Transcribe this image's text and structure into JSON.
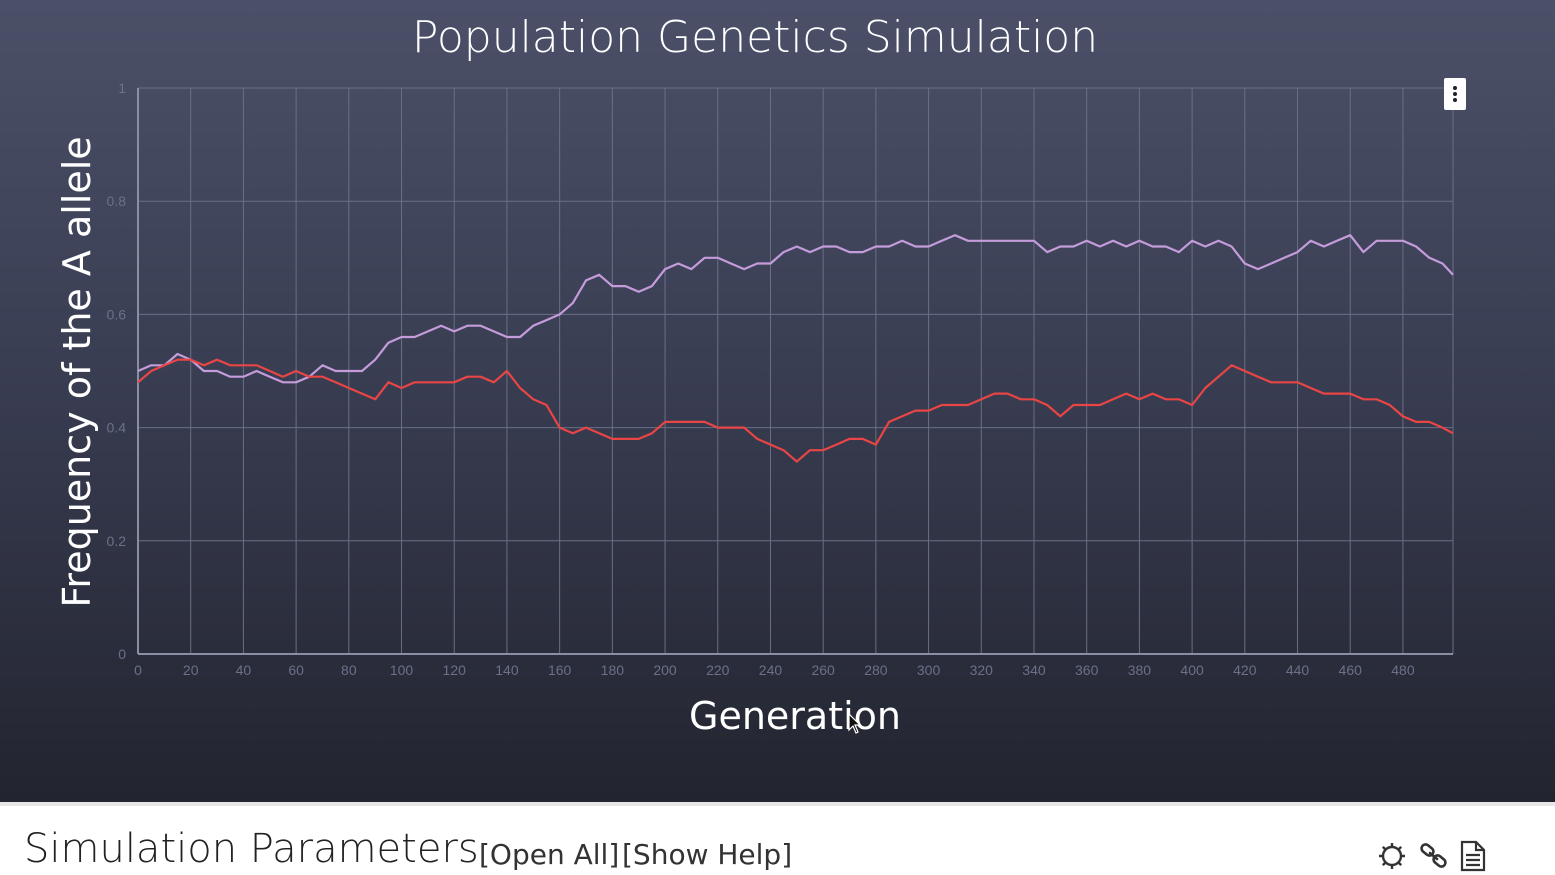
{
  "chart_data": {
    "type": "line",
    "title": "Population Genetics Simulation",
    "xlabel": "Generation",
    "ylabel": "Frequency of the A allele",
    "xlim": [
      0,
      499
    ],
    "ylim": [
      0,
      1
    ],
    "x_ticks": [
      0,
      20,
      40,
      60,
      80,
      100,
      120,
      140,
      160,
      180,
      200,
      220,
      240,
      260,
      280,
      300,
      320,
      340,
      360,
      380,
      400,
      420,
      440,
      460,
      480
    ],
    "y_ticks": [
      0,
      0.2,
      0.4,
      0.6,
      0.8,
      1
    ],
    "grid": true,
    "series": [
      {
        "color": "#c59cdb",
        "x": [
          0,
          5,
          10,
          15,
          20,
          25,
          30,
          35,
          40,
          45,
          50,
          55,
          60,
          65,
          70,
          75,
          80,
          85,
          90,
          95,
          100,
          105,
          110,
          115,
          120,
          125,
          130,
          135,
          140,
          145,
          150,
          155,
          160,
          165,
          170,
          175,
          180,
          185,
          190,
          195,
          200,
          205,
          210,
          215,
          220,
          225,
          230,
          235,
          240,
          245,
          250,
          255,
          260,
          265,
          270,
          275,
          280,
          285,
          290,
          295,
          300,
          305,
          310,
          315,
          320,
          325,
          330,
          335,
          340,
          345,
          350,
          355,
          360,
          365,
          370,
          375,
          380,
          385,
          390,
          395,
          400,
          405,
          410,
          415,
          420,
          425,
          430,
          435,
          440,
          445,
          450,
          455,
          460,
          465,
          470,
          475,
          480,
          485,
          490,
          495,
          499
        ],
        "y": [
          0.5,
          0.51,
          0.51,
          0.53,
          0.52,
          0.5,
          0.5,
          0.49,
          0.49,
          0.5,
          0.49,
          0.48,
          0.48,
          0.49,
          0.51,
          0.5,
          0.5,
          0.5,
          0.52,
          0.55,
          0.56,
          0.56,
          0.57,
          0.58,
          0.57,
          0.58,
          0.58,
          0.57,
          0.56,
          0.56,
          0.58,
          0.59,
          0.6,
          0.62,
          0.66,
          0.67,
          0.65,
          0.65,
          0.64,
          0.65,
          0.68,
          0.69,
          0.68,
          0.7,
          0.7,
          0.69,
          0.68,
          0.69,
          0.69,
          0.71,
          0.72,
          0.71,
          0.72,
          0.72,
          0.71,
          0.71,
          0.72,
          0.72,
          0.73,
          0.72,
          0.72,
          0.73,
          0.74,
          0.73,
          0.73,
          0.73,
          0.73,
          0.73,
          0.73,
          0.71,
          0.72,
          0.72,
          0.73,
          0.72,
          0.73,
          0.72,
          0.73,
          0.72,
          0.72,
          0.71,
          0.73,
          0.72,
          0.73,
          0.72,
          0.69,
          0.68,
          0.69,
          0.7,
          0.71,
          0.73,
          0.72,
          0.73,
          0.74,
          0.71,
          0.73,
          0.73,
          0.73,
          0.72,
          0.7,
          0.69,
          0.67
        ]
      },
      {
        "color": "#e94545",
        "x": [
          0,
          5,
          10,
          15,
          20,
          25,
          30,
          35,
          40,
          45,
          50,
          55,
          60,
          65,
          70,
          75,
          80,
          85,
          90,
          95,
          100,
          105,
          110,
          115,
          120,
          125,
          130,
          135,
          140,
          145,
          150,
          155,
          160,
          165,
          170,
          175,
          180,
          185,
          190,
          195,
          200,
          205,
          210,
          215,
          220,
          225,
          230,
          235,
          240,
          245,
          250,
          255,
          260,
          265,
          270,
          275,
          280,
          285,
          290,
          295,
          300,
          305,
          310,
          315,
          320,
          325,
          330,
          335,
          340,
          345,
          350,
          355,
          360,
          365,
          370,
          375,
          380,
          385,
          390,
          395,
          400,
          405,
          410,
          415,
          420,
          425,
          430,
          435,
          440,
          445,
          450,
          455,
          460,
          465,
          470,
          475,
          480,
          485,
          490,
          495,
          499
        ],
        "y": [
          0.48,
          0.5,
          0.51,
          0.52,
          0.52,
          0.51,
          0.52,
          0.51,
          0.51,
          0.51,
          0.5,
          0.49,
          0.5,
          0.49,
          0.49,
          0.48,
          0.47,
          0.46,
          0.45,
          0.48,
          0.47,
          0.48,
          0.48,
          0.48,
          0.48,
          0.49,
          0.49,
          0.48,
          0.5,
          0.47,
          0.45,
          0.44,
          0.4,
          0.39,
          0.4,
          0.39,
          0.38,
          0.38,
          0.38,
          0.39,
          0.41,
          0.41,
          0.41,
          0.41,
          0.4,
          0.4,
          0.4,
          0.38,
          0.37,
          0.36,
          0.34,
          0.36,
          0.36,
          0.37,
          0.38,
          0.38,
          0.37,
          0.41,
          0.42,
          0.43,
          0.43,
          0.44,
          0.44,
          0.44,
          0.45,
          0.46,
          0.46,
          0.45,
          0.45,
          0.44,
          0.42,
          0.44,
          0.44,
          0.44,
          0.45,
          0.46,
          0.45,
          0.46,
          0.45,
          0.45,
          0.44,
          0.47,
          0.49,
          0.51,
          0.5,
          0.49,
          0.48,
          0.48,
          0.48,
          0.47,
          0.46,
          0.46,
          0.46,
          0.45,
          0.45,
          0.44,
          0.42,
          0.41,
          0.41,
          0.4,
          0.39
        ]
      }
    ]
  },
  "params": {
    "title": "Simulation Parameters",
    "open_all": "[Open All]",
    "show_help": "[Show Help]"
  },
  "icons": {
    "menu": "kebab-menu-icon",
    "settings": "gear-icon",
    "link": "link-icon",
    "document": "document-icon",
    "cursor": "mouse-cursor-icon"
  }
}
